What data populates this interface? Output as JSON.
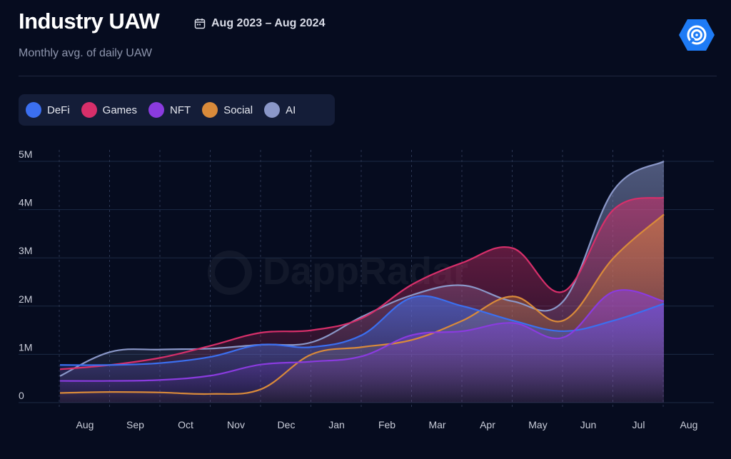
{
  "header": {
    "title": "Industry UAW",
    "date_range": "Aug 2023 – Aug 2024",
    "subtitle": "Monthly avg. of daily UAW",
    "logo_icon": "dappradar-logo-icon"
  },
  "watermark": "DappRadar",
  "legend": [
    {
      "label": "DeFi",
      "color": "#3b6ff0"
    },
    {
      "label": "Games",
      "color": "#d72f6a"
    },
    {
      "label": "NFT",
      "color": "#8a3bdf"
    },
    {
      "label": "Social",
      "color": "#d98a3a"
    },
    {
      "label": "AI",
      "color": "#8a97c8"
    }
  ],
  "chart_data": {
    "type": "area",
    "title": "Industry UAW",
    "subtitle": "Monthly avg. of daily UAW",
    "xlabel": "",
    "ylabel": "",
    "categories": [
      "Aug",
      "Sep",
      "Oct",
      "Nov",
      "Dec",
      "Jan",
      "Feb",
      "Mar",
      "Apr",
      "May",
      "Jun",
      "Jul",
      "Aug"
    ],
    "ylim": [
      0,
      5000000
    ],
    "y_ticks": [
      {
        "value": 0,
        "label": "0"
      },
      {
        "value": 1000000,
        "label": "1M"
      },
      {
        "value": 2000000,
        "label": "2M"
      },
      {
        "value": 3000000,
        "label": "3M"
      },
      {
        "value": 4000000,
        "label": "4M"
      },
      {
        "value": 5000000,
        "label": "5M"
      }
    ],
    "grid": true,
    "legend_position": "top-left",
    "series": [
      {
        "name": "AI",
        "color": "#8a97c8",
        "values": [
          550000,
          1050000,
          1100000,
          1120000,
          1200000,
          1250000,
          1780000,
          2230000,
          2430000,
          2100000,
          2100000,
          4400000,
          5000000
        ]
      },
      {
        "name": "Games",
        "color": "#d72f6a",
        "values": [
          690000,
          780000,
          930000,
          1180000,
          1450000,
          1500000,
          1750000,
          2450000,
          2900000,
          3200000,
          2300000,
          4000000,
          4250000
        ]
      },
      {
        "name": "Social",
        "color": "#d98a3a",
        "values": [
          200000,
          220000,
          210000,
          180000,
          280000,
          1000000,
          1150000,
          1300000,
          1700000,
          2200000,
          1700000,
          3000000,
          3900000
        ]
      },
      {
        "name": "DeFi",
        "color": "#3b6ff0",
        "values": [
          780000,
          780000,
          820000,
          950000,
          1200000,
          1150000,
          1400000,
          2180000,
          2000000,
          1700000,
          1480000,
          1700000,
          2050000
        ]
      },
      {
        "name": "NFT",
        "color": "#8a3bdf",
        "values": [
          450000,
          450000,
          470000,
          560000,
          790000,
          850000,
          960000,
          1400000,
          1480000,
          1650000,
          1350000,
          2300000,
          2100000
        ]
      }
    ]
  }
}
